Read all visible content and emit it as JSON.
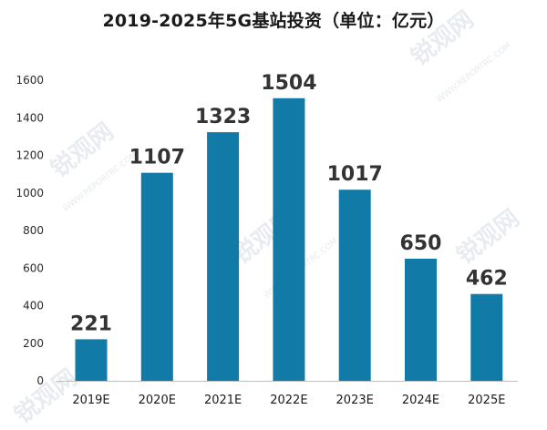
{
  "chart_data": {
    "type": "bar",
    "title": "2019-2025年5G基站投资（单位：亿元）",
    "categories": [
      "2019E",
      "2020E",
      "2021E",
      "2022E",
      "2023E",
      "2024E",
      "2025E"
    ],
    "values": [
      221,
      1107,
      1323,
      1504,
      1017,
      650,
      462
    ],
    "ylim": [
      0,
      1600
    ],
    "yticks": [
      0,
      200,
      400,
      600,
      800,
      1000,
      1200,
      1400,
      1600
    ],
    "xlabel": "",
    "ylabel": "",
    "grid": false,
    "bar_color": "#117aa6",
    "legend": "none"
  },
  "watermark": {
    "text": "锐观网",
    "subtext": "WWW.REPORTRC.COM",
    "color": "#96aabe"
  }
}
